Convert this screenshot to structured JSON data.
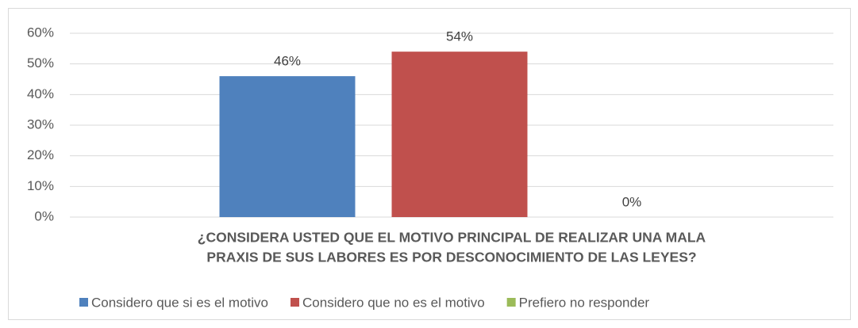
{
  "chart_data": {
    "type": "bar",
    "x_label": [
      "¿CONSIDERA USTED QUE EL MOTIVO PRINCIPAL DE REALIZAR UNA MALA",
      "PRAXIS DE SUS LABORES ES POR DESCONOCIMIENTO DE LAS LEYES?"
    ],
    "categories": [
      null
    ],
    "series": [
      {
        "name": "Considero que si es el motivo",
        "color": "#4f81bd",
        "values": [
          46
        ],
        "value_labels": [
          "46%"
        ]
      },
      {
        "name": "Considero que no es el motivo",
        "color": "#c0504d",
        "values": [
          54
        ],
        "value_labels": [
          "54%"
        ]
      },
      {
        "name": "Prefiero no responder",
        "color": "#9bbb59",
        "values": [
          0
        ],
        "value_labels": [
          "0%"
        ]
      }
    ],
    "ylim": [
      0,
      60
    ],
    "yticks": [
      {
        "value": 0,
        "label": "0%"
      },
      {
        "value": 10,
        "label": "10%"
      },
      {
        "value": 20,
        "label": "20%"
      },
      {
        "value": 30,
        "label": "30%"
      },
      {
        "value": 40,
        "label": "40%"
      },
      {
        "value": 50,
        "label": "50%"
      },
      {
        "value": 60,
        "label": "60%"
      }
    ],
    "grid": true,
    "legend": "bottom"
  }
}
